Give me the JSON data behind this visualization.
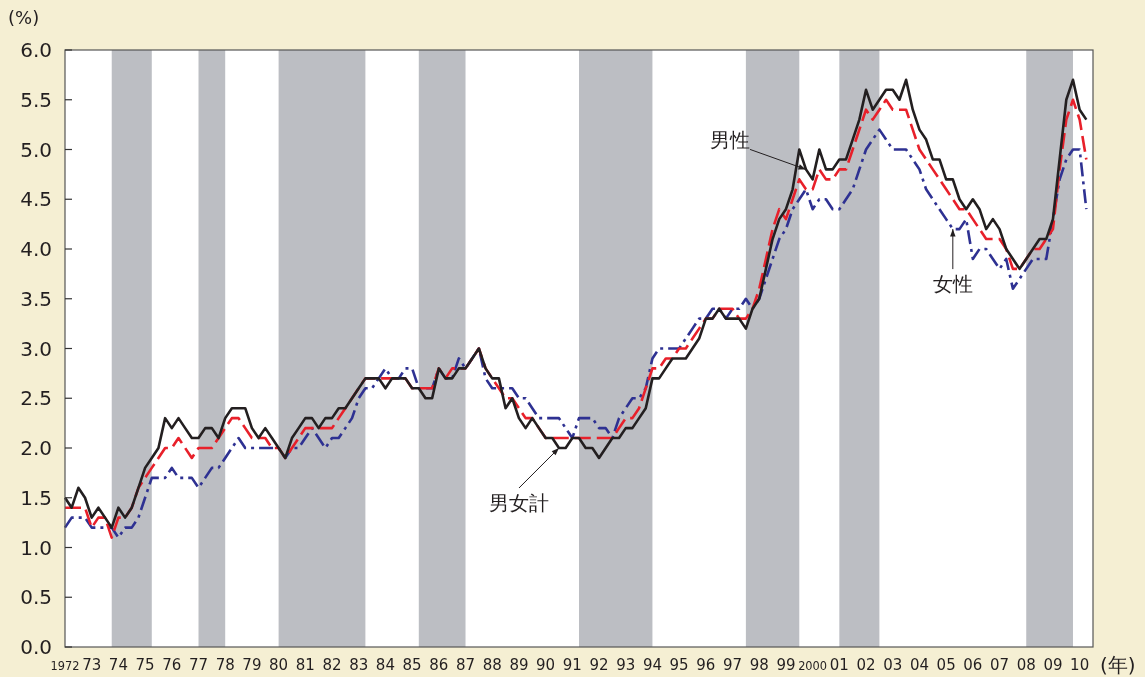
{
  "chart_data": {
    "type": "line",
    "ylabel": "(%)",
    "xlabel": "(年)",
    "xlim": [
      1972,
      2010.5
    ],
    "ylim": [
      0,
      6
    ],
    "yticks": [
      {
        "value": 0,
        "label": "0.0"
      },
      {
        "value": 0.5,
        "label": "0.5"
      },
      {
        "value": 1,
        "label": "1.0"
      },
      {
        "value": 1.5,
        "label": "1.5"
      },
      {
        "value": 2,
        "label": "2.0"
      },
      {
        "value": 2.5,
        "label": "2.5"
      },
      {
        "value": 3,
        "label": "3.0"
      },
      {
        "value": 3.5,
        "label": "3.5"
      },
      {
        "value": 4,
        "label": "4.0"
      },
      {
        "value": 4.5,
        "label": "4.5"
      },
      {
        "value": 5,
        "label": "5.0"
      },
      {
        "value": 5.5,
        "label": "5.5"
      },
      {
        "value": 6,
        "label": "6.0"
      }
    ],
    "xticks": [
      {
        "value": 1972,
        "label": "1972"
      },
      {
        "value": 1973,
        "label": "73"
      },
      {
        "value": 1974,
        "label": "74"
      },
      {
        "value": 1975,
        "label": "75"
      },
      {
        "value": 1976,
        "label": "76"
      },
      {
        "value": 1977,
        "label": "77"
      },
      {
        "value": 1978,
        "label": "78"
      },
      {
        "value": 1979,
        "label": "79"
      },
      {
        "value": 1980,
        "label": "80"
      },
      {
        "value": 1981,
        "label": "81"
      },
      {
        "value": 1982,
        "label": "82"
      },
      {
        "value": 1983,
        "label": "83"
      },
      {
        "value": 1984,
        "label": "84"
      },
      {
        "value": 1985,
        "label": "85"
      },
      {
        "value": 1986,
        "label": "86"
      },
      {
        "value": 1987,
        "label": "87"
      },
      {
        "value": 1988,
        "label": "88"
      },
      {
        "value": 1989,
        "label": "89"
      },
      {
        "value": 1990,
        "label": "90"
      },
      {
        "value": 1991,
        "label": "91"
      },
      {
        "value": 1992,
        "label": "92"
      },
      {
        "value": 1993,
        "label": "93"
      },
      {
        "value": 1994,
        "label": "94"
      },
      {
        "value": 1995,
        "label": "95"
      },
      {
        "value": 1996,
        "label": "96"
      },
      {
        "value": 1997,
        "label": "97"
      },
      {
        "value": 1998,
        "label": "98"
      },
      {
        "value": 1999,
        "label": "99"
      },
      {
        "value": 2000,
        "label": "2000"
      },
      {
        "value": 2001,
        "label": "01"
      },
      {
        "value": 2002,
        "label": "02"
      },
      {
        "value": 2003,
        "label": "03"
      },
      {
        "value": 2004,
        "label": "04"
      },
      {
        "value": 2005,
        "label": "05"
      },
      {
        "value": 2006,
        "label": "06"
      },
      {
        "value": 2007,
        "label": "07"
      },
      {
        "value": 2008,
        "label": "08"
      },
      {
        "value": 2009,
        "label": "09"
      },
      {
        "value": 2010,
        "label": "10"
      }
    ],
    "grid": false,
    "marker": "none",
    "bands": [
      {
        "axis": "x",
        "from": 1973.75,
        "to": 1975.25,
        "color": "#bcbec3"
      },
      {
        "axis": "x",
        "from": 1977,
        "to": 1978,
        "color": "#bcbec3"
      },
      {
        "axis": "x",
        "from": 1980,
        "to": 1983.25,
        "color": "#bcbec3"
      },
      {
        "axis": "x",
        "from": 1985.25,
        "to": 1987,
        "color": "#bcbec3"
      },
      {
        "axis": "x",
        "from": 1991.25,
        "to": 1994,
        "color": "#bcbec3"
      },
      {
        "axis": "x",
        "from": 1997.5,
        "to": 1999.5,
        "color": "#bcbec3"
      },
      {
        "axis": "x",
        "from": 2001,
        "to": 2002.5,
        "color": "#bcbec3"
      },
      {
        "axis": "x",
        "from": 2008,
        "to": 2009.75,
        "color": "#bcbec3"
      }
    ],
    "x": [
      1972,
      1972.25,
      1972.5,
      1972.75,
      1973,
      1973.25,
      1973.5,
      1973.75,
      1974,
      1974.25,
      1974.5,
      1974.75,
      1975,
      1975.25,
      1975.5,
      1975.75,
      1976,
      1976.25,
      1976.5,
      1976.75,
      1977,
      1977.25,
      1977.5,
      1977.75,
      1978,
      1978.25,
      1978.5,
      1978.75,
      1979,
      1979.25,
      1979.5,
      1979.75,
      1980,
      1980.25,
      1980.5,
      1980.75,
      1981,
      1981.25,
      1981.5,
      1981.75,
      1982,
      1982.25,
      1982.5,
      1982.75,
      1983,
      1983.25,
      1983.5,
      1983.75,
      1984,
      1984.25,
      1984.5,
      1984.75,
      1985,
      1985.25,
      1985.5,
      1985.75,
      1986,
      1986.25,
      1986.5,
      1986.75,
      1987,
      1987.25,
      1987.5,
      1987.75,
      1988,
      1988.25,
      1988.5,
      1988.75,
      1989,
      1989.25,
      1989.5,
      1989.75,
      1990,
      1990.25,
      1990.5,
      1990.75,
      1991,
      1991.25,
      1991.5,
      1991.75,
      1992,
      1992.25,
      1992.5,
      1992.75,
      1993,
      1993.25,
      1993.5,
      1993.75,
      1994,
      1994.25,
      1994.5,
      1994.75,
      1995,
      1995.25,
      1995.5,
      1995.75,
      1996,
      1996.25,
      1996.5,
      1996.75,
      1997,
      1997.25,
      1997.5,
      1997.75,
      1998,
      1998.25,
      1998.5,
      1998.75,
      1999,
      1999.25,
      1999.5,
      1999.75,
      2000,
      2000.25,
      2000.5,
      2000.75,
      2001,
      2001.25,
      2001.5,
      2001.75,
      2002,
      2002.25,
      2002.5,
      2002.75,
      2003,
      2003.25,
      2003.5,
      2003.75,
      2004,
      2004.25,
      2004.5,
      2004.75,
      2005,
      2005.25,
      2005.5,
      2005.75,
      2006,
      2006.25,
      2006.5,
      2006.75,
      2007,
      2007.25,
      2007.5,
      2007.75,
      2008,
      2008.25,
      2008.5,
      2008.75,
      2009,
      2009.25,
      2009.5,
      2009.75,
      2010,
      2010.25
    ],
    "series": [
      {
        "color": "#231f20",
        "line_style": "solid",
        "values": [
          1.5,
          1.4,
          1.6,
          1.5,
          1.3,
          1.4,
          1.3,
          1.2,
          1.4,
          1.3,
          1.4,
          1.6,
          1.8,
          1.9,
          2.0,
          2.3,
          2.2,
          2.3,
          2.2,
          2.1,
          2.1,
          2.2,
          2.2,
          2.1,
          2.3,
          2.4,
          2.4,
          2.4,
          2.2,
          2.1,
          2.2,
          2.1,
          2.0,
          1.9,
          2.1,
          2.2,
          2.3,
          2.3,
          2.2,
          2.3,
          2.3,
          2.4,
          2.4,
          2.5,
          2.6,
          2.7,
          2.7,
          2.7,
          2.6,
          2.7,
          2.7,
          2.7,
          2.6,
          2.6,
          2.5,
          2.5,
          2.8,
          2.7,
          2.7,
          2.8,
          2.8,
          2.9,
          3.0,
          2.8,
          2.7,
          2.7,
          2.4,
          2.5,
          2.3,
          2.2,
          2.3,
          2.2,
          2.1,
          2.1,
          2.0,
          2.0,
          2.1,
          2.1,
          2.0,
          2.0,
          1.9,
          2.0,
          2.1,
          2.1,
          2.2,
          2.2,
          2.3,
          2.4,
          2.7,
          2.7,
          2.8,
          2.9,
          2.9,
          2.9,
          3.0,
          3.1,
          3.3,
          3.3,
          3.4,
          3.3,
          3.3,
          3.3,
          3.2,
          3.4,
          3.5,
          3.8,
          4.1,
          4.3,
          4.4,
          4.6,
          5.0,
          4.8,
          4.7,
          5.0,
          4.8,
          4.8,
          4.9,
          4.9,
          5.1,
          5.3,
          5.6,
          5.4,
          5.5,
          5.6,
          5.6,
          5.5,
          5.7,
          5.4,
          5.2,
          5.1,
          4.9,
          4.9,
          4.7,
          4.7,
          4.5,
          4.4,
          4.5,
          4.4,
          4.2,
          4.3,
          4.2,
          4.0,
          3.9,
          3.8,
          3.9,
          4.0,
          4.1,
          4.1,
          4.3,
          4.9,
          5.5,
          5.7,
          5.4,
          5.3
        ]
      },
      {
        "color": "#e8202a",
        "line_style": "dashed",
        "values": [
          1.4,
          1.4,
          1.4,
          1.4,
          1.2,
          1.3,
          1.3,
          1.1,
          1.3,
          1.3,
          1.4,
          1.6,
          1.7,
          1.8,
          1.9,
          2.0,
          2.0,
          2.1,
          2.0,
          1.9,
          2.0,
          2.0,
          2.0,
          2.1,
          2.2,
          2.3,
          2.3,
          2.2,
          2.1,
          2.1,
          2.1,
          2.0,
          2.0,
          1.9,
          2.0,
          2.1,
          2.2,
          2.2,
          2.2,
          2.2,
          2.2,
          2.3,
          2.4,
          2.5,
          2.6,
          2.7,
          2.7,
          2.7,
          2.7,
          2.7,
          2.7,
          2.7,
          2.6,
          2.6,
          2.6,
          2.6,
          2.8,
          2.7,
          2.8,
          2.8,
          2.8,
          2.9,
          3.0,
          2.8,
          2.7,
          2.6,
          2.5,
          2.5,
          2.4,
          2.3,
          2.3,
          2.2,
          2.1,
          2.1,
          2.1,
          2.1,
          2.1,
          2.1,
          2.1,
          2.1,
          2.1,
          2.1,
          2.1,
          2.2,
          2.3,
          2.3,
          2.4,
          2.6,
          2.8,
          2.8,
          2.9,
          2.9,
          3.0,
          3.0,
          3.1,
          3.2,
          3.3,
          3.3,
          3.4,
          3.4,
          3.4,
          3.3,
          3.3,
          3.4,
          3.6,
          3.9,
          4.2,
          4.4,
          4.3,
          4.5,
          4.7,
          4.6,
          4.6,
          4.8,
          4.7,
          4.7,
          4.8,
          4.8,
          5.0,
          5.2,
          5.4,
          5.3,
          5.4,
          5.5,
          5.4,
          5.4,
          5.4,
          5.2,
          5.0,
          4.9,
          4.8,
          4.7,
          4.6,
          4.5,
          4.4,
          4.4,
          4.3,
          4.2,
          4.1,
          4.1,
          4.1,
          4.0,
          3.8,
          3.8,
          3.9,
          4.0,
          4.0,
          4.1,
          4.2,
          4.8,
          5.3,
          5.5,
          5.3,
          4.9
        ]
      },
      {
        "color": "#2e3192",
        "line_style": "dashdot",
        "values": [
          1.2,
          1.3,
          1.3,
          1.3,
          1.2,
          1.2,
          1.2,
          1.2,
          1.1,
          1.2,
          1.2,
          1.3,
          1.5,
          1.7,
          1.7,
          1.7,
          1.8,
          1.7,
          1.7,
          1.7,
          1.6,
          1.7,
          1.8,
          1.8,
          1.9,
          2.0,
          2.1,
          2.0,
          2.0,
          2.0,
          2.0,
          2.0,
          2.0,
          1.9,
          2.0,
          2.0,
          2.1,
          2.2,
          2.1,
          2.0,
          2.1,
          2.1,
          2.2,
          2.3,
          2.5,
          2.6,
          2.6,
          2.7,
          2.8,
          2.7,
          2.7,
          2.8,
          2.8,
          2.6,
          2.6,
          2.6,
          2.8,
          2.7,
          2.7,
          2.9,
          2.8,
          2.9,
          3.0,
          2.7,
          2.6,
          2.6,
          2.6,
          2.6,
          2.5,
          2.5,
          2.4,
          2.3,
          2.3,
          2.3,
          2.3,
          2.2,
          2.1,
          2.3,
          2.3,
          2.3,
          2.2,
          2.2,
          2.1,
          2.3,
          2.4,
          2.5,
          2.5,
          2.6,
          2.9,
          3.0,
          3.0,
          3.0,
          3.0,
          3.1,
          3.2,
          3.3,
          3.3,
          3.4,
          3.4,
          3.3,
          3.4,
          3.4,
          3.5,
          3.4,
          3.5,
          3.7,
          3.9,
          4.1,
          4.2,
          4.4,
          4.5,
          4.6,
          4.4,
          4.5,
          4.5,
          4.4,
          4.4,
          4.5,
          4.6,
          4.8,
          5.0,
          5.1,
          5.2,
          5.1,
          5.0,
          5.0,
          5.0,
          4.9,
          4.8,
          4.6,
          4.5,
          4.4,
          4.3,
          4.2,
          4.2,
          4.3,
          3.9,
          4.0,
          4.0,
          3.9,
          3.8,
          3.9,
          3.6,
          3.7,
          3.8,
          3.9,
          3.9,
          3.9,
          4.3,
          4.7,
          4.9,
          5.0,
          5.0,
          4.4
        ]
      }
    ],
    "annotations": [
      {
        "text": "男性",
        "x": 1999.75,
        "y": 4.8
      },
      {
        "text": "女性",
        "x": 2005.25,
        "y": 4.2
      },
      {
        "text": "男女計",
        "x": 1990.5,
        "y": 2.0
      }
    ]
  }
}
